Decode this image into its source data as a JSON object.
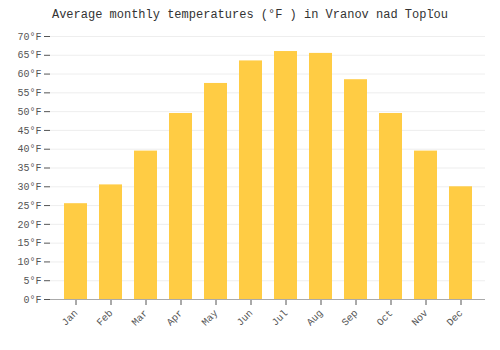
{
  "chart_data": {
    "type": "bar",
    "title": "Average monthly temperatures (°F ) in Vranov nad Topľou",
    "categories": [
      "Jan",
      "Feb",
      "Mar",
      "Apr",
      "May",
      "Jun",
      "Jul",
      "Aug",
      "Sep",
      "Oct",
      "Nov",
      "Dec"
    ],
    "values": [
      25.5,
      30.5,
      39.5,
      49.5,
      57.5,
      63.5,
      66.0,
      65.5,
      58.5,
      49.5,
      39.5,
      30.0
    ],
    "color": "#FFCC44",
    "ylim": [
      0,
      70
    ],
    "yticks": [
      {
        "value": 0,
        "label": "0°F"
      },
      {
        "value": 5,
        "label": "5°F"
      },
      {
        "value": 10,
        "label": "10°F"
      },
      {
        "value": 15,
        "label": "15°F"
      },
      {
        "value": 20,
        "label": "20°F"
      },
      {
        "value": 25,
        "label": "25°F"
      },
      {
        "value": 30,
        "label": "30°F"
      },
      {
        "value": 35,
        "label": "35°F"
      },
      {
        "value": 40,
        "label": "40°F"
      },
      {
        "value": 45,
        "label": "45°F"
      },
      {
        "value": 50,
        "label": "50°F"
      },
      {
        "value": 55,
        "label": "55°F"
      },
      {
        "value": 60,
        "label": "60°F"
      },
      {
        "value": 65,
        "label": "65°F"
      },
      {
        "value": 70,
        "label": "70°F"
      }
    ],
    "grid": true
  }
}
